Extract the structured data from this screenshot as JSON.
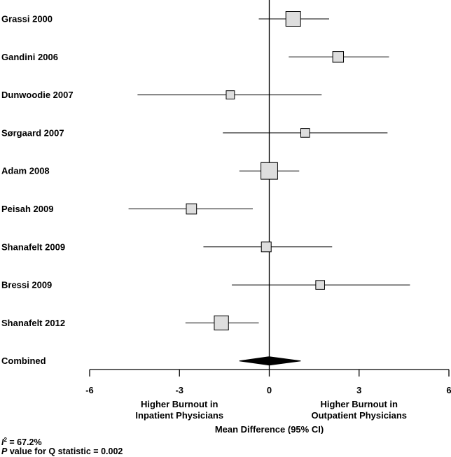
{
  "chart_data": {
    "type": "forest",
    "xlabel": "Mean Difference (95% CI)",
    "xlim": [
      -6,
      6
    ],
    "xticks": [
      "-6",
      "-3",
      "0",
      "3",
      "6"
    ],
    "direction_labels": {
      "left": [
        "Higher Burnout in",
        "Inpatient Physicians"
      ],
      "right": [
        "Higher Burnout in",
        "Outpatient Physicians"
      ]
    },
    "studies": [
      {
        "label": "Grassi 2000",
        "estimate": 0.8,
        "ci": [
          -0.35,
          2.0
        ],
        "weight": 1.0
      },
      {
        "label": "Gandini 2006",
        "estimate": 2.3,
        "ci": [
          0.65,
          4.0
        ],
        "weight": 0.6
      },
      {
        "label": "Dunwoodie 2007",
        "estimate": -1.3,
        "ci": [
          -4.4,
          1.75
        ],
        "weight": 0.35
      },
      {
        "label": "Sørgaard 2007",
        "estimate": 1.2,
        "ci": [
          -1.55,
          3.95
        ],
        "weight": 0.4
      },
      {
        "label": "Adam 2008",
        "estimate": 0.0,
        "ci": [
          -1.0,
          1.0
        ],
        "weight": 1.2
      },
      {
        "label": "Peisah 2009",
        "estimate": -2.6,
        "ci": [
          -4.7,
          -0.55
        ],
        "weight": 0.55
      },
      {
        "label": "Shanafelt 2009",
        "estimate": -0.1,
        "ci": [
          -2.2,
          2.1
        ],
        "weight": 0.5
      },
      {
        "label": "Bressi 2009",
        "estimate": 1.7,
        "ci": [
          -1.25,
          4.7
        ],
        "weight": 0.4
      },
      {
        "label": "Shanafelt 2012",
        "estimate": -1.6,
        "ci": [
          -2.8,
          -0.35
        ],
        "weight": 0.95
      }
    ],
    "combined": {
      "label": "Combined",
      "estimate": 0.0,
      "ci": [
        -1.0,
        1.05
      ]
    }
  },
  "footnotes": {
    "i2_symbol": "I",
    "i2_superscript": "2",
    "i2_value": " = 67.2%",
    "p_symbol": "P",
    "p_text": " value for Q statistic = 0.002"
  },
  "colors": {
    "box_fill": "#dedede",
    "stroke": "#000000",
    "diamond": "#000000"
  }
}
